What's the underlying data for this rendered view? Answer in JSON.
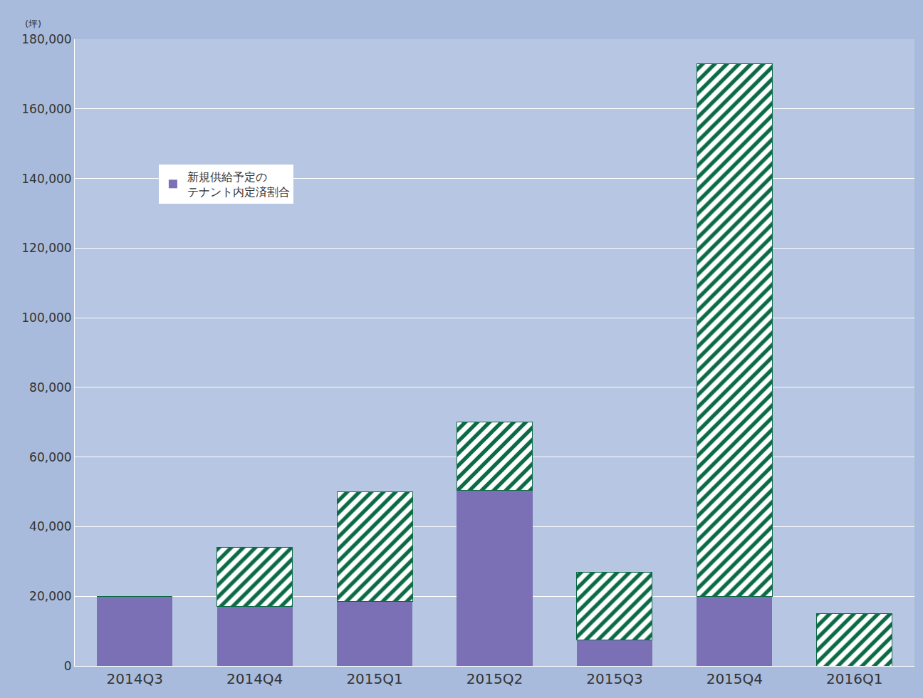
{
  "chart_data": {
    "type": "bar",
    "stacked": true,
    "y_label": "(坪)",
    "categories": [
      "2014Q3",
      "2014Q4",
      "2015Q1",
      "2015Q2",
      "2015Q3",
      "2015Q4",
      "2016Q1"
    ],
    "series": [
      {
        "name": "新規供給予定の\nテナント内定済割合",
        "color": "#7b6fb5",
        "values": [
          20000,
          17000,
          18500,
          50500,
          7500,
          20000,
          0
        ]
      },
      {
        "color": "#0b6b45",
        "values": [
          0,
          17000,
          31500,
          19500,
          19500,
          153000,
          15000
        ]
      }
    ],
    "ylim": [
      0,
      180000
    ],
    "yticks": [
      0,
      {
        "value": 20000,
        "label": "20,000"
      },
      {
        "value": 40000,
        "label": "40,000"
      },
      {
        "value": 60000,
        "label": "60,000"
      },
      {
        "value": 80000,
        "label": "80,000"
      },
      {
        "value": 100000,
        "label": "100,000"
      },
      {
        "value": 120000,
        "label": "120,000"
      },
      {
        "value": 140000,
        "label": "140,000"
      },
      {
        "value": 160000,
        "label": "160,000"
      },
      {
        "value": 180000,
        "label": "180,000"
      }
    ],
    "grid": true,
    "legend": "upper left"
  }
}
